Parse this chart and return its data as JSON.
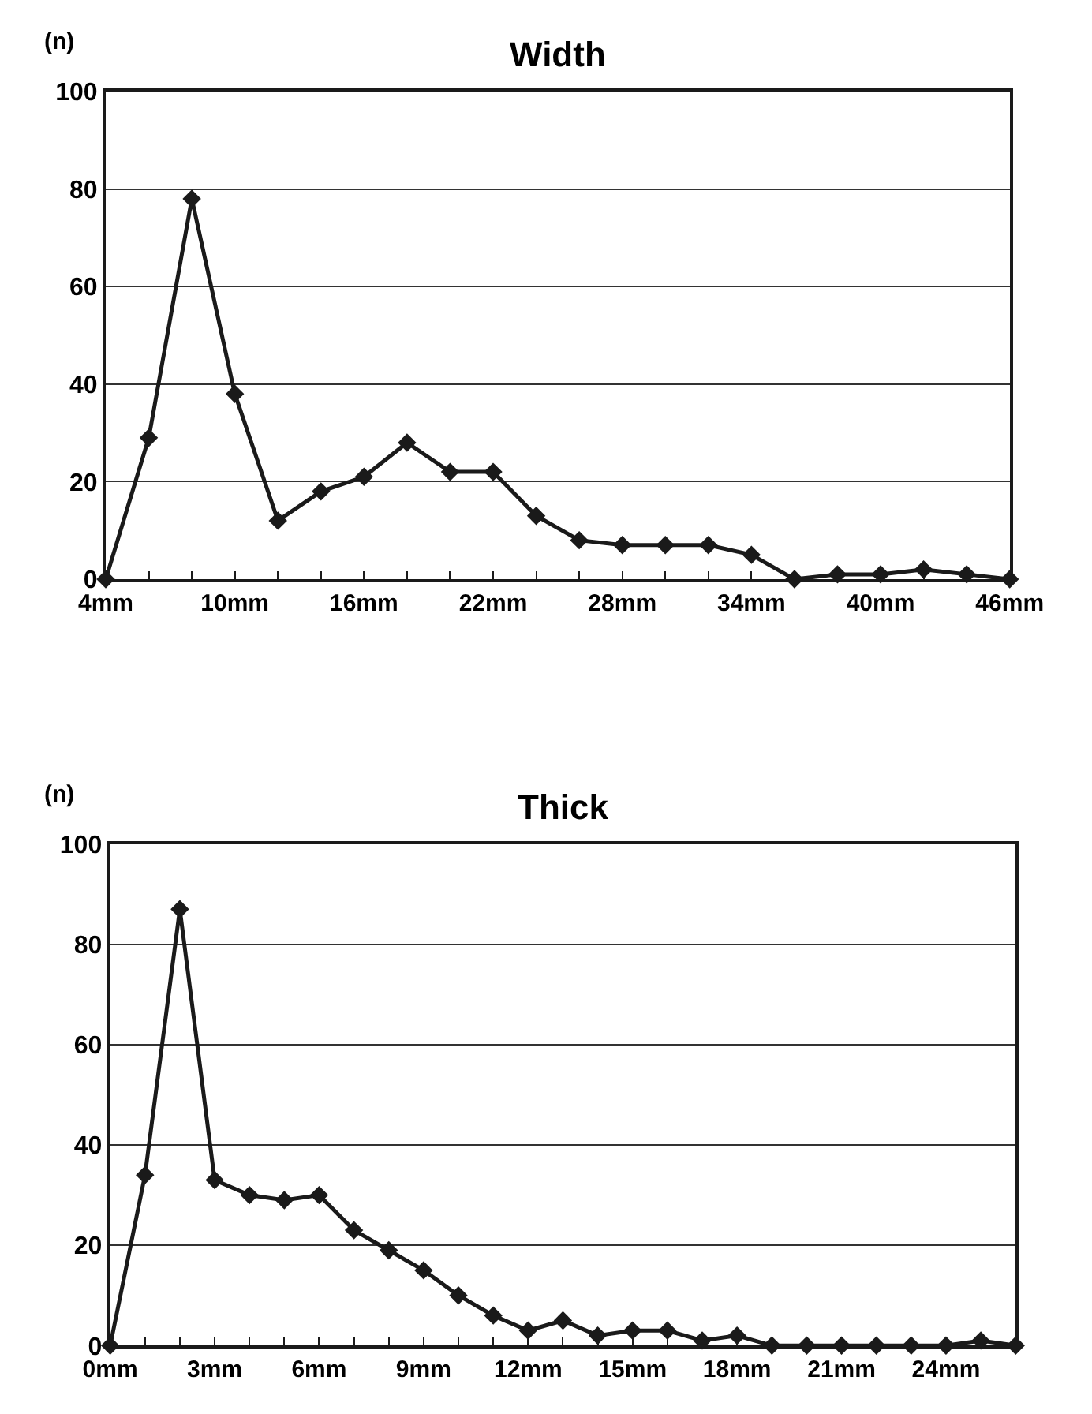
{
  "chart_data": [
    {
      "type": "line",
      "title": "Width",
      "ylabel": "(n)",
      "marker": "diamond",
      "line_style": "solid",
      "grid": "y",
      "x": [
        4,
        6,
        8,
        10,
        12,
        14,
        16,
        18,
        20,
        22,
        24,
        26,
        28,
        30,
        32,
        34,
        36,
        38,
        40,
        42,
        44,
        46
      ],
      "series": [
        {
          "color": "#1a1a1a",
          "values": [
            0,
            29,
            78,
            38,
            12,
            18,
            21,
            28,
            22,
            22,
            13,
            8,
            7,
            7,
            7,
            5,
            0,
            1,
            1,
            2,
            1,
            0
          ]
        }
      ],
      "xlim": [
        4,
        46
      ],
      "ylim": [
        0,
        100
      ],
      "yticks": [
        0,
        20,
        40,
        60,
        80,
        100
      ],
      "xticks": [
        {
          "value": 4,
          "label": "4mm"
        },
        {
          "value": 6,
          "label": null
        },
        {
          "value": 8,
          "label": null
        },
        {
          "value": 10,
          "label": "10mm"
        },
        {
          "value": 12,
          "label": null
        },
        {
          "value": 14,
          "label": null
        },
        {
          "value": 16,
          "label": "16mm"
        },
        {
          "value": 18,
          "label": null
        },
        {
          "value": 20,
          "label": null
        },
        {
          "value": 22,
          "label": "22mm"
        },
        {
          "value": 24,
          "label": null
        },
        {
          "value": 26,
          "label": null
        },
        {
          "value": 28,
          "label": "28mm"
        },
        {
          "value": 30,
          "label": null
        },
        {
          "value": 32,
          "label": null
        },
        {
          "value": 34,
          "label": "34mm"
        },
        {
          "value": 36,
          "label": null
        },
        {
          "value": 38,
          "label": null
        },
        {
          "value": 40,
          "label": "40mm"
        },
        {
          "value": 42,
          "label": null
        },
        {
          "value": 44,
          "label": null
        },
        {
          "value": 46,
          "label": "46mm"
        }
      ]
    },
    {
      "type": "line",
      "title": "Thick",
      "ylabel": "(n)",
      "marker": "diamond",
      "line_style": "solid",
      "grid": "y",
      "x": [
        0,
        1,
        2,
        3,
        4,
        5,
        6,
        7,
        8,
        9,
        10,
        11,
        12,
        13,
        14,
        15,
        16,
        17,
        18,
        19,
        20,
        21,
        22,
        23,
        24,
        25,
        26
      ],
      "series": [
        {
          "color": "#1a1a1a",
          "values": [
            0,
            34,
            87,
            33,
            30,
            29,
            30,
            23,
            19,
            15,
            10,
            6,
            3,
            5,
            2,
            3,
            3,
            1,
            2,
            0,
            0,
            0,
            0,
            0,
            0,
            1,
            0
          ]
        }
      ],
      "xlim": [
        0,
        26
      ],
      "ylim": [
        0,
        100
      ],
      "yticks": [
        0,
        20,
        40,
        60,
        80,
        100
      ],
      "xticks": [
        {
          "value": 0,
          "label": "0mm"
        },
        {
          "value": 1,
          "label": null
        },
        {
          "value": 2,
          "label": null
        },
        {
          "value": 3,
          "label": "3mm"
        },
        {
          "value": 4,
          "label": null
        },
        {
          "value": 5,
          "label": null
        },
        {
          "value": 6,
          "label": "6mm"
        },
        {
          "value": 7,
          "label": null
        },
        {
          "value": 8,
          "label": null
        },
        {
          "value": 9,
          "label": "9mm"
        },
        {
          "value": 10,
          "label": null
        },
        {
          "value": 11,
          "label": null
        },
        {
          "value": 12,
          "label": "12mm"
        },
        {
          "value": 13,
          "label": null
        },
        {
          "value": 14,
          "label": null
        },
        {
          "value": 15,
          "label": "15mm"
        },
        {
          "value": 16,
          "label": null
        },
        {
          "value": 17,
          "label": null
        },
        {
          "value": 18,
          "label": "18mm"
        },
        {
          "value": 19,
          "label": null
        },
        {
          "value": 20,
          "label": null
        },
        {
          "value": 21,
          "label": "21mm"
        },
        {
          "value": 22,
          "label": null
        },
        {
          "value": 23,
          "label": null
        },
        {
          "value": 24,
          "label": "24mm"
        },
        {
          "value": 25,
          "label": null
        },
        {
          "value": 26,
          "label": null
        }
      ]
    }
  ]
}
